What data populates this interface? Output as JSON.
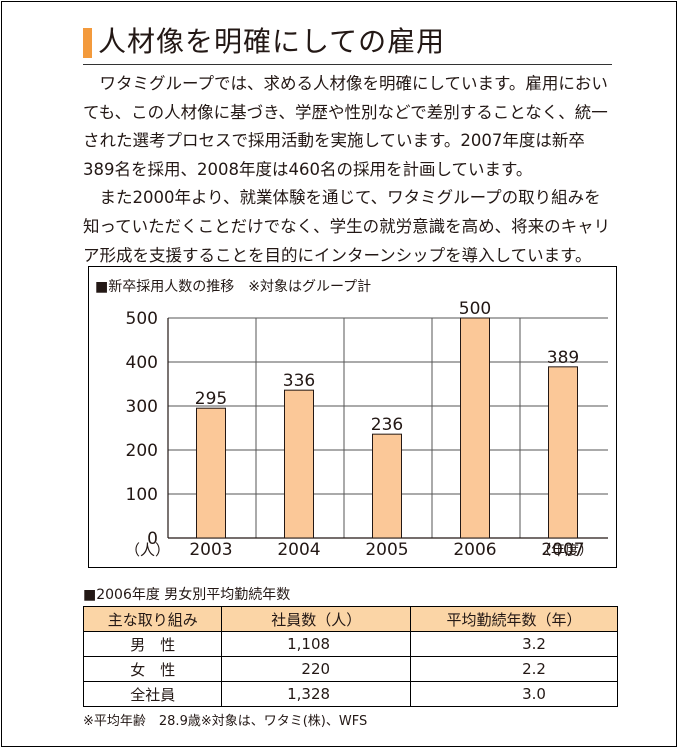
{
  "heading": "人材像を明確にしての雇用",
  "colors": {
    "accent": "#f39a3c",
    "bar_fill": "#fbc898",
    "bar_stroke": "#231815",
    "header_fill": "#fbd5a6"
  },
  "paragraphs": [
    "ワタミグループでは、求める人材像を明確にしています。雇用においても、この人材像に基づき、学歴や性別などで差別することなく、統一された選考プロセスで採用活動を実施しています。2007年度は新卒389名を採用、2008年度は460名の採用を計画しています。",
    "また2000年より、就業体験を通じて、ワタミグループの取り組みを知っていただくことだけでなく、学生の就労意識を高め、将来のキャリア形成を支援することを目的にインターンシップを導入しています。"
  ],
  "chart_data": {
    "type": "bar",
    "title": "■新卒採用人数の推移　※対象はグループ計",
    "categories": [
      "2003",
      "2004",
      "2005",
      "2006",
      "2007"
    ],
    "values": [
      295,
      336,
      236,
      500,
      389
    ],
    "yticks": [
      0,
      100,
      200,
      300,
      400,
      500
    ],
    "ylim": [
      0,
      500
    ],
    "ylabel": "（人）",
    "xlabel": "（年度）",
    "grid": true
  },
  "table": {
    "title": "■2006年度 男女別平均勤続年数",
    "headers": [
      "主な取り組み",
      "社員数（人）",
      "平均勤続年数（年）"
    ],
    "rows": [
      [
        "男　性",
        "1,108",
        "3.2"
      ],
      [
        "女　性",
        "220",
        "2.2"
      ],
      [
        "全社員",
        "1,328",
        "3.0"
      ]
    ]
  },
  "footnote": "※平均年齢　28.9歳※対象は、ワタミ(株)、WFS"
}
